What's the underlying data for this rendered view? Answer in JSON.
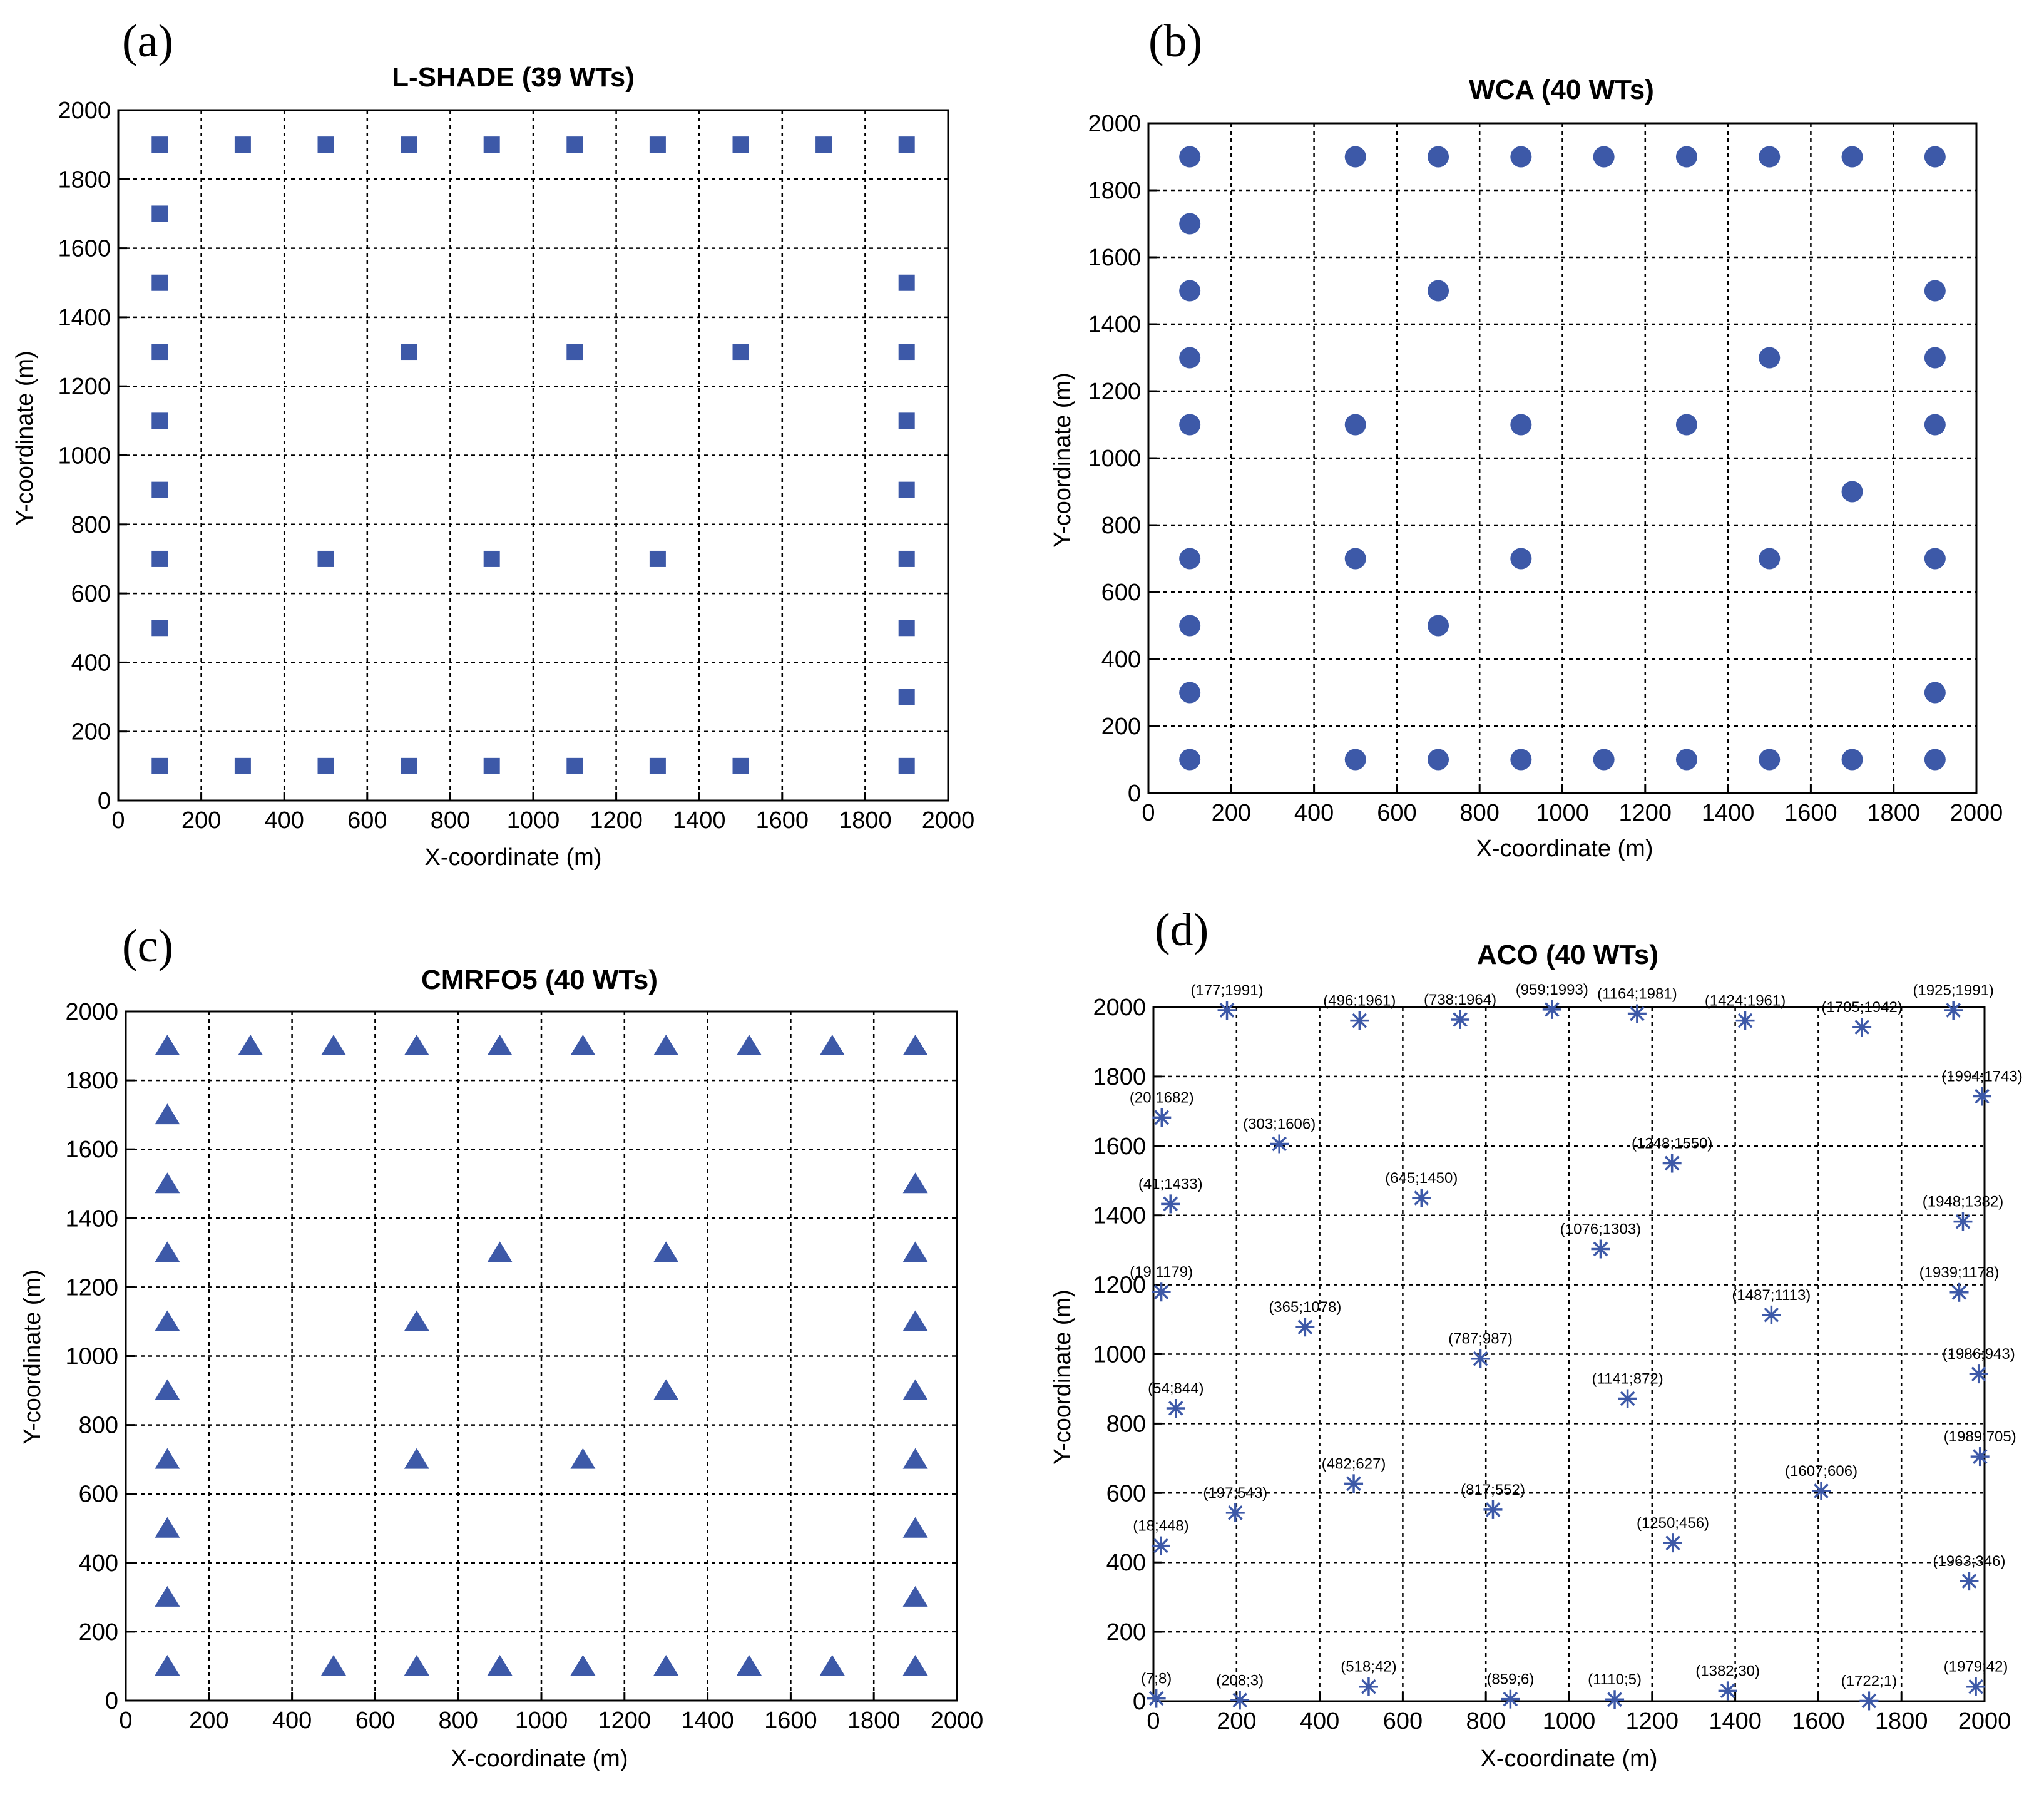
{
  "figure": {
    "marker_color": "#3d59a8"
  },
  "chart_data": [
    {
      "panel": "(a)",
      "type": "scatter",
      "title": "L-SHADE (39 WTs)",
      "xlabel": "X-coordinate (m)",
      "ylabel": "Y-coordinate (m)",
      "xlim": [
        0,
        2000
      ],
      "ylim": [
        0,
        2000
      ],
      "xticks": [
        0,
        200,
        400,
        600,
        800,
        1000,
        1200,
        1400,
        1600,
        1800,
        2000
      ],
      "yticks": [
        0,
        200,
        400,
        600,
        800,
        1000,
        1200,
        1400,
        1600,
        1800,
        2000
      ],
      "grid": true,
      "marker": "square",
      "points": [
        [
          100,
          1900
        ],
        [
          300,
          1900
        ],
        [
          500,
          1900
        ],
        [
          700,
          1900
        ],
        [
          900,
          1900
        ],
        [
          1100,
          1900
        ],
        [
          1300,
          1900
        ],
        [
          1500,
          1900
        ],
        [
          1700,
          1900
        ],
        [
          1900,
          1900
        ],
        [
          100,
          1700
        ],
        [
          100,
          1500
        ],
        [
          1900,
          1500
        ],
        [
          100,
          1300
        ],
        [
          700,
          1300
        ],
        [
          1100,
          1300
        ],
        [
          1500,
          1300
        ],
        [
          1900,
          1300
        ],
        [
          100,
          1100
        ],
        [
          1900,
          1100
        ],
        [
          100,
          900
        ],
        [
          1900,
          900
        ],
        [
          100,
          700
        ],
        [
          500,
          700
        ],
        [
          900,
          700
        ],
        [
          1300,
          700
        ],
        [
          1900,
          700
        ],
        [
          100,
          500
        ],
        [
          1900,
          500
        ],
        [
          1900,
          300
        ],
        [
          100,
          100
        ],
        [
          300,
          100
        ],
        [
          500,
          100
        ],
        [
          700,
          100
        ],
        [
          900,
          100
        ],
        [
          1100,
          100
        ],
        [
          1300,
          100
        ],
        [
          1500,
          100
        ],
        [
          1900,
          100
        ]
      ]
    },
    {
      "panel": "(b)",
      "type": "scatter",
      "title": "WCA (40 WTs)",
      "xlabel": "X-coordinate (m)",
      "ylabel": "Y-coordinate (m)",
      "xlim": [
        0,
        2000
      ],
      "ylim": [
        0,
        2000
      ],
      "xticks": [
        0,
        200,
        400,
        600,
        800,
        1000,
        1200,
        1400,
        1600,
        1800,
        2000
      ],
      "yticks": [
        0,
        200,
        400,
        600,
        800,
        1000,
        1200,
        1400,
        1600,
        1800,
        2000
      ],
      "grid": true,
      "marker": "circle",
      "points": [
        [
          100,
          1900
        ],
        [
          500,
          1900
        ],
        [
          700,
          1900
        ],
        [
          900,
          1900
        ],
        [
          1100,
          1900
        ],
        [
          1300,
          1900
        ],
        [
          1500,
          1900
        ],
        [
          1700,
          1900
        ],
        [
          1900,
          1900
        ],
        [
          100,
          1700
        ],
        [
          100,
          1500
        ],
        [
          700,
          1500
        ],
        [
          1900,
          1500
        ],
        [
          100,
          1300
        ],
        [
          1500,
          1300
        ],
        [
          1900,
          1300
        ],
        [
          100,
          1100
        ],
        [
          500,
          1100
        ],
        [
          900,
          1100
        ],
        [
          1300,
          1100
        ],
        [
          1900,
          1100
        ],
        [
          1700,
          900
        ],
        [
          100,
          700
        ],
        [
          500,
          700
        ],
        [
          900,
          700
        ],
        [
          1500,
          700
        ],
        [
          1900,
          700
        ],
        [
          100,
          500
        ],
        [
          700,
          500
        ],
        [
          100,
          300
        ],
        [
          1900,
          300
        ],
        [
          100,
          100
        ],
        [
          500,
          100
        ],
        [
          700,
          100
        ],
        [
          900,
          100
        ],
        [
          1100,
          100
        ],
        [
          1300,
          100
        ],
        [
          1500,
          100
        ],
        [
          1700,
          100
        ],
        [
          1900,
          100
        ]
      ]
    },
    {
      "panel": "(c)",
      "type": "scatter",
      "title": "CMRFO5 (40 WTs)",
      "xlabel": "X-coordinate (m)",
      "ylabel": "Y-coordinate (m)",
      "xlim": [
        0,
        2000
      ],
      "ylim": [
        0,
        2000
      ],
      "xticks": [
        0,
        200,
        400,
        600,
        800,
        1000,
        1200,
        1400,
        1600,
        1800,
        2000
      ],
      "yticks": [
        0,
        200,
        400,
        600,
        800,
        1000,
        1200,
        1400,
        1600,
        1800,
        2000
      ],
      "grid": true,
      "marker": "triangle",
      "points": [
        [
          100,
          1900
        ],
        [
          300,
          1900
        ],
        [
          500,
          1900
        ],
        [
          700,
          1900
        ],
        [
          900,
          1900
        ],
        [
          1100,
          1900
        ],
        [
          1300,
          1900
        ],
        [
          1500,
          1900
        ],
        [
          1700,
          1900
        ],
        [
          1900,
          1900
        ],
        [
          100,
          1700
        ],
        [
          100,
          1500
        ],
        [
          1900,
          1500
        ],
        [
          100,
          1300
        ],
        [
          900,
          1300
        ],
        [
          1300,
          1300
        ],
        [
          1900,
          1300
        ],
        [
          100,
          1100
        ],
        [
          700,
          1100
        ],
        [
          1900,
          1100
        ],
        [
          100,
          900
        ],
        [
          1300,
          900
        ],
        [
          1900,
          900
        ],
        [
          100,
          700
        ],
        [
          700,
          700
        ],
        [
          1100,
          700
        ],
        [
          1900,
          700
        ],
        [
          100,
          500
        ],
        [
          1900,
          500
        ],
        [
          100,
          300
        ],
        [
          1900,
          300
        ],
        [
          100,
          100
        ],
        [
          500,
          100
        ],
        [
          700,
          100
        ],
        [
          900,
          100
        ],
        [
          1100,
          100
        ],
        [
          1300,
          100
        ],
        [
          1500,
          100
        ],
        [
          1700,
          100
        ],
        [
          1900,
          100
        ]
      ]
    },
    {
      "panel": "(d)",
      "type": "scatter",
      "title": "ACO (40 WTs)",
      "xlabel": "X-coordinate (m)",
      "ylabel": "Y-coordinate (m)",
      "xlim": [
        0,
        2000
      ],
      "ylim": [
        0,
        2000
      ],
      "xticks": [
        0,
        200,
        400,
        600,
        800,
        1000,
        1200,
        1400,
        1600,
        1800,
        2000
      ],
      "yticks": [
        0,
        200,
        400,
        600,
        800,
        1000,
        1200,
        1400,
        1600,
        1800,
        2000
      ],
      "grid": true,
      "marker": "asterisk",
      "points": [
        [
          177,
          1991
        ],
        [
          496,
          1961
        ],
        [
          738,
          1964
        ],
        [
          959,
          1993
        ],
        [
          1164,
          1981
        ],
        [
          1424,
          1961
        ],
        [
          1705,
          1942
        ],
        [
          1925,
          1991
        ],
        [
          20,
          1682
        ],
        [
          303,
          1606
        ],
        [
          1994,
          1743
        ],
        [
          1248,
          1550
        ],
        [
          41,
          1433
        ],
        [
          645,
          1450
        ],
        [
          1948,
          1382
        ],
        [
          1076,
          1303
        ],
        [
          19,
          1179
        ],
        [
          365,
          1078
        ],
        [
          1487,
          1113
        ],
        [
          1939,
          1178
        ],
        [
          787,
          987
        ],
        [
          1986,
          943
        ],
        [
          54,
          844
        ],
        [
          1141,
          872
        ],
        [
          1989,
          705
        ],
        [
          482,
          627
        ],
        [
          197,
          543
        ],
        [
          817,
          552
        ],
        [
          1607,
          606
        ],
        [
          18,
          448
        ],
        [
          1250,
          456
        ],
        [
          1963,
          346
        ],
        [
          7,
          8
        ],
        [
          208,
          3
        ],
        [
          518,
          42
        ],
        [
          859,
          6
        ],
        [
          1110,
          5
        ],
        [
          1382,
          30
        ],
        [
          1722,
          1
        ],
        [
          1979,
          42
        ]
      ],
      "point_labels": [
        "(177;1991)",
        "(496;1961)",
        "(738;1964)",
        "(959;1993)",
        "(1164;1981)",
        "(1424;1961)",
        "(1705;1942)",
        "(1925;1991)",
        "(20;1682)",
        "(303;1606)",
        "(1994;1743)",
        "(1248;1550)",
        "(41;1433)",
        "(645;1450)",
        "(1948;1382)",
        "(1076;1303)",
        "(19;1179)",
        "(365;1078)",
        "(1487;1113)",
        "(1939;1178)",
        "(787;987)",
        "(1986;943)",
        "(54;844)",
        "(1141;872)",
        "(1989;705)",
        "(482;627)",
        "(197;543)",
        "(817;552)",
        "(1607;606)",
        "(18;448)",
        "(1250;456)",
        "(1963;346)",
        "(7;8)",
        "(208;3)",
        "(518;42)",
        "(859;6)",
        "(1110;5)",
        "(1382;30)",
        "(1722;1)",
        "(1979;42)"
      ]
    }
  ]
}
